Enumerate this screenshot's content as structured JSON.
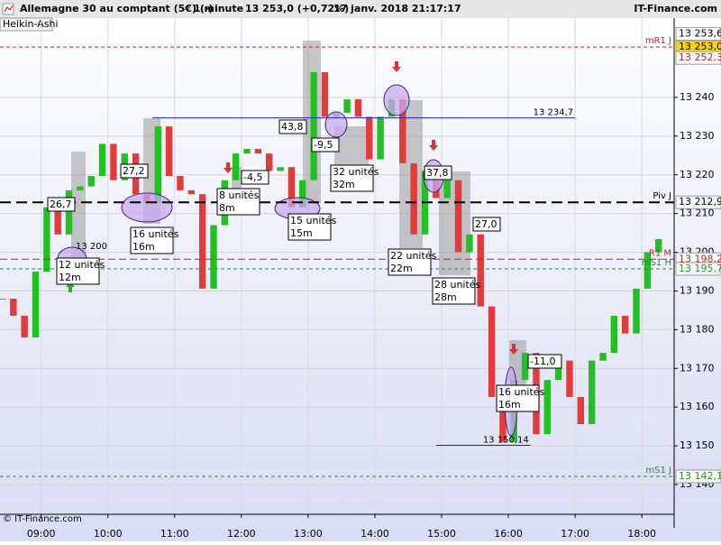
{
  "chart_data": {
    "type": "candlestick",
    "header": {
      "instrument": "Allemagne 30 au comptant (5€) (-)",
      "interval": "1 minute",
      "price": "13 253,0 (+0,72%)",
      "datetime": "17 janv. 2018 21:17:17",
      "site": "IT-Finance.com"
    },
    "chart_type_label": "Heikin-Ashi",
    "footer": "© IT-Finance.com",
    "up_color": "#22c022",
    "down_color": "#e03c3c",
    "x": [
      "08:25",
      "08:35",
      "08:45",
      "08:55",
      "09:05",
      "09:15",
      "09:25",
      "09:35",
      "09:45",
      "09:55",
      "10:05",
      "10:15",
      "10:25",
      "10:35",
      "10:45",
      "10:55",
      "11:05",
      "11:15",
      "11:25",
      "11:35",
      "11:45",
      "11:55",
      "12:05",
      "12:15",
      "12:25",
      "12:35",
      "12:45",
      "12:55",
      "13:05",
      "13:15",
      "13:25",
      "13:35",
      "13:45",
      "13:55",
      "14:05",
      "14:15",
      "14:25",
      "14:35",
      "14:45",
      "14:55",
      "15:05",
      "15:15",
      "15:25",
      "15:35",
      "15:45",
      "15:55",
      "16:05",
      "16:15",
      "16:25",
      "16:35",
      "16:45",
      "16:55",
      "17:05",
      "17:15",
      "17:25",
      "17:35",
      "17:45",
      "17:55",
      "18:05",
      "18:15"
    ],
    "values": [
      13188,
      13183.6,
      13178,
      13195,
      13211.6,
      13204.6,
      13216,
      13217,
      13219.7,
      13228,
      13218.6,
      13225.5,
      13215,
      13212.7,
      13232.5,
      13219.7,
      13216,
      13215,
      13190.6,
      13207,
      13218.6,
      13225.5,
      13226.7,
      13225.5,
      13221,
      13222,
      13211.6,
      13218.6,
      13246.5,
      13235,
      13236,
      13239.5,
      13235,
      13224,
      13235,
      13239.5,
      13223,
      13204.6,
      13221,
      13214,
      13218.6,
      13200,
      13204.6,
      13186,
      13162.6,
      13151,
      13167,
      13174,
      13153,
      13167,
      13172,
      13162.6,
      13155.6,
      13172,
      13174,
      13183.6,
      13179,
      13190.6,
      13200,
      13203.4
    ],
    "xlim": [
      "08:23",
      "18:29"
    ],
    "xticks": [
      "09:00",
      "10:00",
      "11:00",
      "12:00",
      "13:00",
      "14:00",
      "15:00",
      "16:00",
      "17:00",
      "18:00"
    ],
    "ylim": [
      13132.3,
      13260.5
    ],
    "yticks": [
      {
        "value": 13140,
        "label": "13 140"
      },
      {
        "value": 13150,
        "label": "13 150"
      },
      {
        "value": 13160,
        "label": "13 160"
      },
      {
        "value": 13170,
        "label": "13 170"
      },
      {
        "value": 13180,
        "label": "13 180"
      },
      {
        "value": 13190,
        "label": "13 190"
      },
      {
        "value": 13200,
        "label": "13 200"
      },
      {
        "value": 13210,
        "label": "13 210"
      },
      {
        "value": 13220,
        "label": "13 220"
      },
      {
        "value": 13230,
        "label": "13 230"
      },
      {
        "value": 13240,
        "label": "13 240"
      }
    ],
    "grid": true,
    "levels": [
      {
        "label": "mR1 J",
        "value": 13253,
        "value_label": "13 253,0",
        "color": "#cc2222",
        "box_fill": "#ffd400",
        "box_text": "#000000",
        "dash": "4,3",
        "width": 1
      },
      {
        "label": "Piv J",
        "value": 13212.9,
        "value_label": "13 212,9",
        "color": "#000000",
        "box_fill": "#ffffff",
        "box_text": "#000000",
        "dash": "12,6",
        "width": 2
      },
      {
        "label": "R1 M",
        "value": 13198.2,
        "value_label": "13 198,2",
        "color": "#cc2222",
        "box_fill": "#ffffff",
        "box_text": "#cc2222",
        "dash": "8,4",
        "width": 1
      },
      {
        "label": "mS1 H",
        "value": 13195.7,
        "value_label": "13 195,7",
        "color": "#1a9a1a",
        "box_fill": "#ffffff",
        "box_text": "#1a9a1a",
        "dash": "4,3",
        "width": 1
      },
      {
        "label": "mS1 J",
        "value": 13142.1,
        "value_label": "13 142,1",
        "color": "#1a9a1a",
        "box_fill": "#ffffff",
        "box_text": "#1a9a1a",
        "dash": "4,3",
        "width": 1
      }
    ],
    "price_labels": [
      {
        "value": 13253.6,
        "label": "13 253,6",
        "box_fill": "#ffffff",
        "box_text": "#000000"
      },
      {
        "value": 13252.3,
        "label": "13 252,3",
        "box_fill": "#ffffff",
        "box_text": "#cc2222"
      }
    ],
    "trendlines": [
      {
        "value": 13234.7,
        "label": "13 234,7",
        "start": "10:40",
        "end": "17:00",
        "color": "#2020cc"
      },
      {
        "value": 13150.14,
        "label": "13 150,14",
        "start": "14:55",
        "end": "16:20",
        "color": "#2020cc"
      }
    ],
    "level_note": "13 200",
    "annotations": [
      {
        "lines": [
          "26,7"
        ]
      },
      {
        "lines": [
          "27,2"
        ]
      },
      {
        "lines": [
          "-4,5"
        ]
      },
      {
        "lines": [
          "43,8"
        ]
      },
      {
        "lines": [
          "-9,5"
        ]
      },
      {
        "lines": [
          "37,8"
        ]
      },
      {
        "lines": [
          "27,0"
        ]
      },
      {
        "lines": [
          "-11,0"
        ]
      },
      {
        "lines": [
          "12 unités",
          "12m"
        ]
      },
      {
        "lines": [
          "16 unités",
          "16m"
        ]
      },
      {
        "lines": [
          "8 unités",
          "8m"
        ]
      },
      {
        "lines": [
          "15 unités",
          "15m"
        ]
      },
      {
        "lines": [
          "32 unités",
          "32m"
        ]
      },
      {
        "lines": [
          "22 unités",
          "22m"
        ]
      },
      {
        "lines": [
          "28 unités",
          "28m"
        ]
      },
      {
        "lines": [
          "16 unités",
          "16m"
        ]
      }
    ]
  }
}
